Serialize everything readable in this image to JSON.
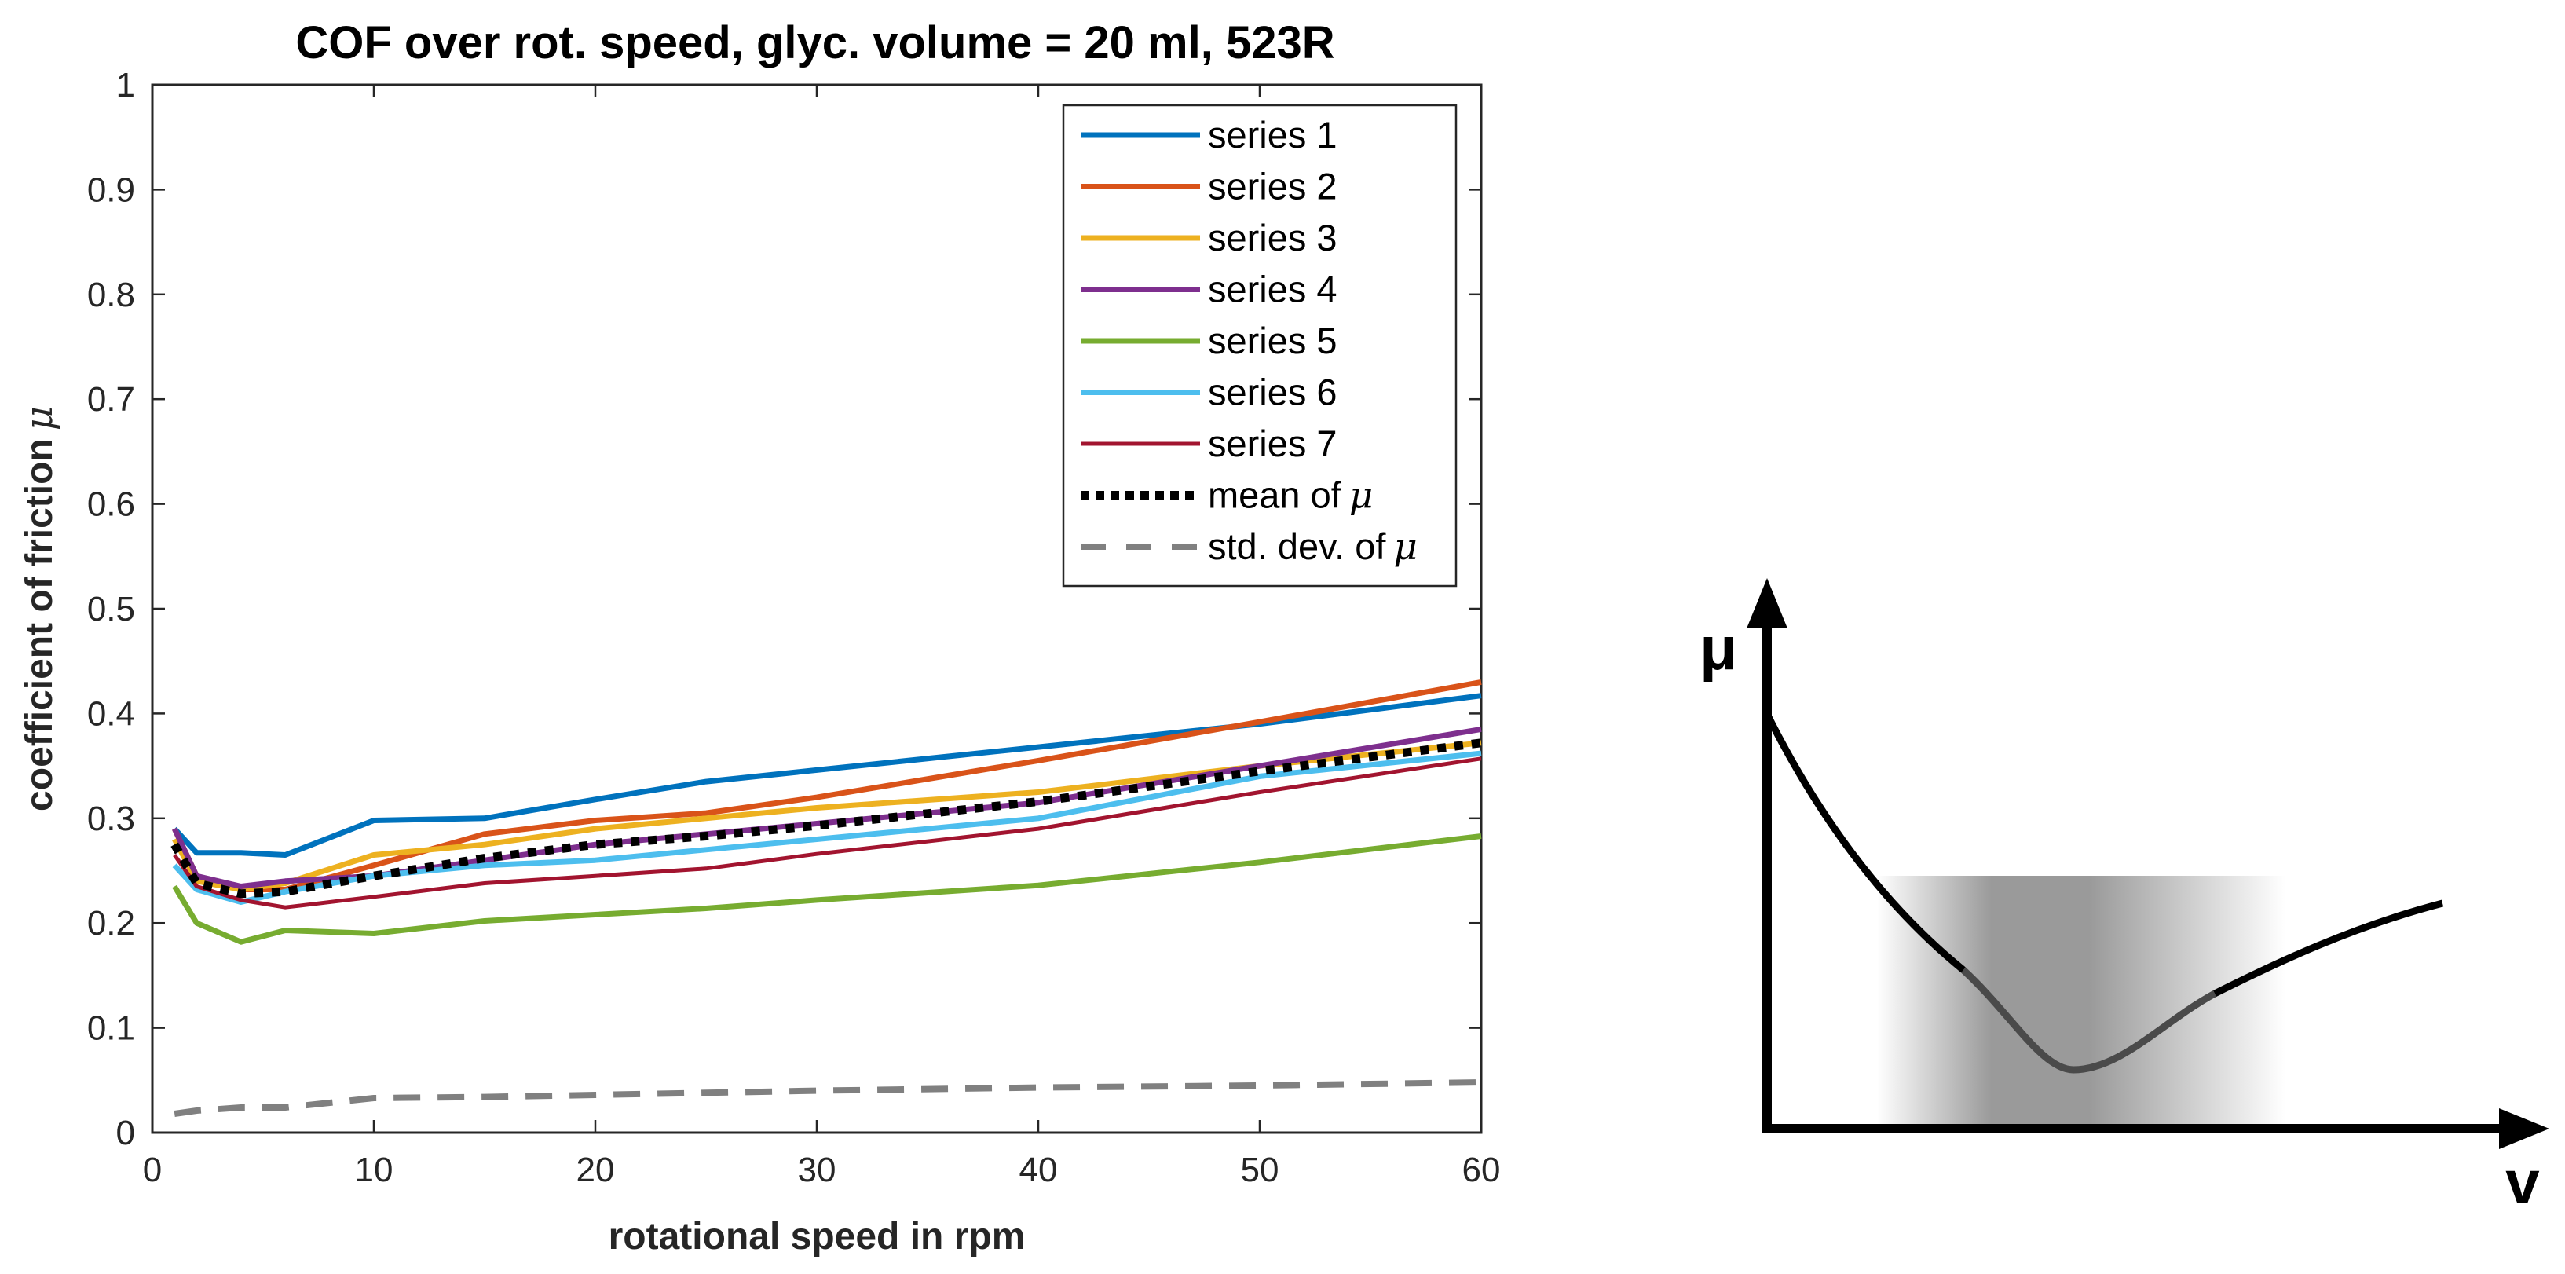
{
  "chart_data": [
    {
      "type": "line",
      "title": "COF over rot. speed, glyc. volume = 20 ml, 523R",
      "xlabel": "rotational speed in rpm",
      "ylabel_text": "coefficient of friction",
      "ylabel_symbol": "μ",
      "xlim": [
        0,
        60
      ],
      "ylim": [
        0,
        1
      ],
      "xticks": [
        0,
        10,
        20,
        30,
        40,
        50,
        60
      ],
      "yticks": [
        0,
        0.1,
        0.2,
        0.3,
        0.4,
        0.5,
        0.6,
        0.7,
        0.8,
        0.9,
        1
      ],
      "grid": false,
      "legend_position": "top-right",
      "x": [
        1,
        2,
        4,
        6,
        10,
        15,
        20,
        25,
        30,
        40,
        50,
        60
      ],
      "series": [
        {
          "name": "series 1",
          "label": "series 1",
          "color": "#0072BD",
          "style": "solid",
          "values": [
            0.29,
            0.267,
            0.267,
            0.265,
            0.298,
            0.3,
            0.318,
            0.335,
            0.346,
            0.368,
            0.39,
            0.417
          ]
        },
        {
          "name": "series 2",
          "label": "series 2",
          "color": "#D95319",
          "style": "solid",
          "values": [
            0.29,
            0.245,
            0.232,
            0.232,
            0.255,
            0.285,
            0.298,
            0.305,
            0.32,
            0.355,
            0.392,
            0.43
          ]
        },
        {
          "name": "series 3",
          "label": "series 3",
          "color": "#EDB120",
          "style": "solid",
          "values": [
            0.28,
            0.24,
            0.232,
            0.238,
            0.265,
            0.275,
            0.29,
            0.3,
            0.31,
            0.325,
            0.35,
            0.372
          ]
        },
        {
          "name": "series 4",
          "label": "series 4",
          "color": "#7E2F8E",
          "style": "solid",
          "values": [
            0.29,
            0.245,
            0.235,
            0.24,
            0.245,
            0.26,
            0.275,
            0.285,
            0.295,
            0.315,
            0.35,
            0.385
          ]
        },
        {
          "name": "series 5",
          "label": "series 5",
          "color": "#77AC30",
          "style": "solid",
          "values": [
            0.235,
            0.2,
            0.182,
            0.193,
            0.19,
            0.202,
            0.208,
            0.214,
            0.222,
            0.236,
            0.258,
            0.283
          ]
        },
        {
          "name": "series 6",
          "label": "series 6",
          "color": "#4DBEEE",
          "style": "solid",
          "values": [
            0.255,
            0.232,
            0.22,
            0.23,
            0.245,
            0.255,
            0.26,
            0.27,
            0.28,
            0.3,
            0.34,
            0.362
          ]
        },
        {
          "name": "series 7",
          "label": "series 7",
          "color": "#A2142F",
          "style": "solid",
          "values": [
            0.265,
            0.235,
            0.222,
            0.215,
            0.225,
            0.238,
            0.245,
            0.252,
            0.266,
            0.29,
            0.325,
            0.357
          ]
        },
        {
          "name": "mean",
          "label": "mean of",
          "color": "#000000",
          "style": "dotted",
          "values": [
            0.275,
            0.238,
            0.228,
            0.23,
            0.245,
            0.262,
            0.275,
            0.283,
            0.293,
            0.316,
            0.345,
            0.372
          ]
        },
        {
          "name": "std",
          "label": "std. dev. of",
          "color": "#808080",
          "style": "dashed",
          "values": [
            0.018,
            0.021,
            0.024,
            0.024,
            0.033,
            0.034,
            0.036,
            0.038,
            0.04,
            0.043,
            0.045,
            0.048
          ]
        }
      ]
    },
    {
      "type": "diagram",
      "title": "",
      "y_axis_label": "μ",
      "x_axis_label": "v",
      "description_curve": "Stribeck-type curve: decreasing friction, minimum at mid velocity, then increasing"
    }
  ]
}
